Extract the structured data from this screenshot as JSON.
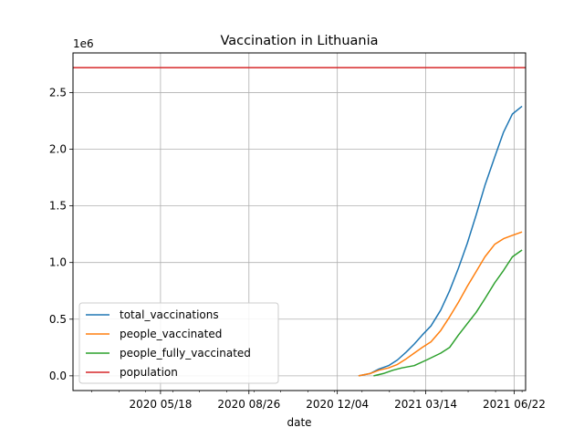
{
  "chart_data": {
    "type": "line",
    "title": "Vaccination in Lithuania",
    "xlabel": "date",
    "ylabel": "",
    "y_offset_label": "1e6",
    "x_ticks": [
      {
        "date": "2020-05-18",
        "label": "2020 05/18"
      },
      {
        "date": "2020-08-26",
        "label": "2020 08/26"
      },
      {
        "date": "2020-12-04",
        "label": "2020 12/04"
      },
      {
        "date": "2021-03-14",
        "label": "2021 03/14"
      },
      {
        "date": "2021-06-22",
        "label": "2021 06/22"
      }
    ],
    "xlim": [
      "2020-02-09",
      "2021-07-05"
    ],
    "y_ticks": [
      0.0,
      0.5,
      1.0,
      1.5,
      2.0,
      2.5
    ],
    "y_tick_labels": [
      "0.0",
      "0.5",
      "1.0",
      "1.5",
      "2.0",
      "2.5"
    ],
    "ylim": [
      -0.13,
      2.85
    ],
    "grid": true,
    "legend_position": "lower-left",
    "series": [
      {
        "name": "total_vaccinations",
        "color": "#1f77b4",
        "points": [
          [
            "2020-12-28",
            0.0
          ],
          [
            "2021-01-10",
            0.02
          ],
          [
            "2021-01-20",
            0.06
          ],
          [
            "2021-01-31",
            0.09
          ],
          [
            "2021-02-10",
            0.14
          ],
          [
            "2021-02-20",
            0.21
          ],
          [
            "2021-03-01",
            0.28
          ],
          [
            "2021-03-10",
            0.36
          ],
          [
            "2021-03-20",
            0.44
          ],
          [
            "2021-03-31",
            0.58
          ],
          [
            "2021-04-10",
            0.75
          ],
          [
            "2021-04-20",
            0.95
          ],
          [
            "2021-04-30",
            1.17
          ],
          [
            "2021-05-10",
            1.42
          ],
          [
            "2021-05-20",
            1.68
          ],
          [
            "2021-05-31",
            1.93
          ],
          [
            "2021-06-10",
            2.15
          ],
          [
            "2021-06-20",
            2.31
          ],
          [
            "2021-07-01",
            2.38
          ]
        ]
      },
      {
        "name": "people_vaccinated",
        "color": "#ff7f0e",
        "points": [
          [
            "2020-12-28",
            0.0
          ],
          [
            "2021-01-10",
            0.02
          ],
          [
            "2021-01-20",
            0.05
          ],
          [
            "2021-01-31",
            0.07
          ],
          [
            "2021-02-10",
            0.1
          ],
          [
            "2021-02-20",
            0.15
          ],
          [
            "2021-03-01",
            0.2
          ],
          [
            "2021-03-10",
            0.25
          ],
          [
            "2021-03-20",
            0.3
          ],
          [
            "2021-03-31",
            0.4
          ],
          [
            "2021-04-10",
            0.52
          ],
          [
            "2021-04-20",
            0.65
          ],
          [
            "2021-04-30",
            0.79
          ],
          [
            "2021-05-10",
            0.92
          ],
          [
            "2021-05-20",
            1.05
          ],
          [
            "2021-05-31",
            1.16
          ],
          [
            "2021-06-10",
            1.21
          ],
          [
            "2021-06-20",
            1.24
          ],
          [
            "2021-07-01",
            1.27
          ]
        ]
      },
      {
        "name": "people_fully_vaccinated",
        "color": "#2ca02c",
        "points": [
          [
            "2021-01-14",
            0.0
          ],
          [
            "2021-01-25",
            0.02
          ],
          [
            "2021-02-05",
            0.05
          ],
          [
            "2021-02-15",
            0.07
          ],
          [
            "2021-03-01",
            0.09
          ],
          [
            "2021-03-15",
            0.14
          ],
          [
            "2021-03-31",
            0.2
          ],
          [
            "2021-04-10",
            0.25
          ],
          [
            "2021-04-20",
            0.36
          ],
          [
            "2021-04-30",
            0.46
          ],
          [
            "2021-05-10",
            0.56
          ],
          [
            "2021-05-20",
            0.68
          ],
          [
            "2021-05-31",
            0.82
          ],
          [
            "2021-06-10",
            0.93
          ],
          [
            "2021-06-20",
            1.05
          ],
          [
            "2021-07-01",
            1.11
          ]
        ]
      },
      {
        "name": "population",
        "color": "#d62728",
        "points": [
          [
            "2020-02-09",
            2.72
          ],
          [
            "2021-07-05",
            2.72
          ]
        ]
      }
    ]
  }
}
